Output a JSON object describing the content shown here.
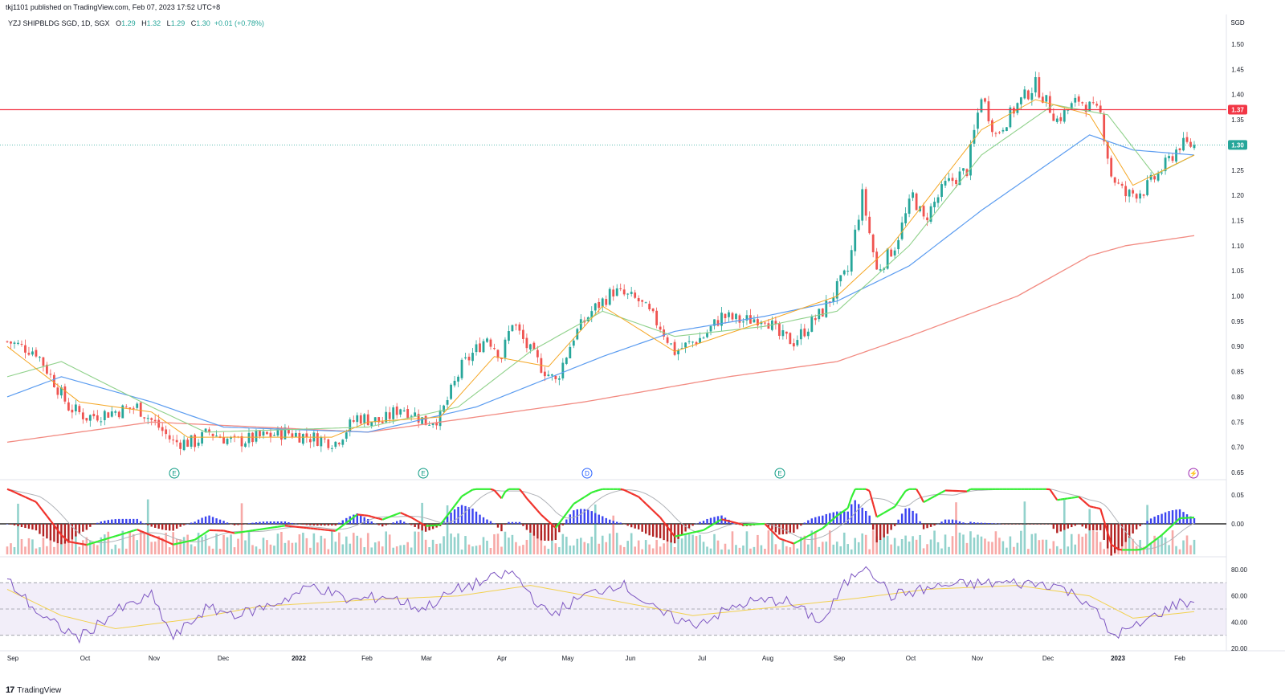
{
  "header": {
    "published": "tkj1101 published on TradingView.com, Feb 07, 2023 17:52 UTC+8"
  },
  "symbol": {
    "name": "YZJ SHIPBLDG SGD, 1D, SGX",
    "open_label": "O",
    "open": "1.29",
    "high_label": "H",
    "high": "1.32",
    "low_label": "L",
    "low": "1.29",
    "close_label": "C",
    "close": "1.30",
    "change": "+0.01 (+0.78%)"
  },
  "footer": {
    "brand": "TradingView",
    "logo": "17"
  },
  "colors": {
    "up": "#26a69a",
    "down": "#ef5350",
    "resistance": "#f23645",
    "ema_fast": "#f5a623",
    "ema_mid": "#8fd18a",
    "ema_slow": "#5b9cf0",
    "ema_long": "#f28b82",
    "rsi": "#7e57c2",
    "rsi_ma": "#f2d14f",
    "macd_up": "#33ee33",
    "macd_down": "#f0322b"
  },
  "chart_data": [
    {
      "type": "candlestick",
      "currency": "SGD",
      "x_labels": [
        "Sep",
        "Oct",
        "Nov",
        "Dec",
        "2022",
        "Feb",
        "Mar",
        "Apr",
        "May",
        "Jun",
        "Jul",
        "Aug",
        "Sep",
        "Oct",
        "Nov",
        "Dec",
        "2023",
        "Feb"
      ],
      "y_ticks": [
        "1.50",
        "1.45",
        "1.40",
        "1.35",
        "1.30",
        "1.25",
        "1.20",
        "1.15",
        "1.10",
        "1.05",
        "1.00",
        "0.95",
        "0.90",
        "0.85",
        "0.80",
        "0.75",
        "0.70",
        "0.65"
      ],
      "ylim": [
        0.625,
        1.525
      ],
      "resistance_level": 1.37,
      "resistance_label": "1.37",
      "last_price": 1.3,
      "last_price_label": "1.30",
      "close_path": [
        [
          0,
          0.91
        ],
        [
          8,
          0.89
        ],
        [
          13,
          0.83
        ],
        [
          17,
          0.78
        ],
        [
          22,
          0.76
        ],
        [
          29,
          0.77
        ],
        [
          36,
          0.78
        ],
        [
          42,
          0.74
        ],
        [
          46,
          0.71
        ],
        [
          52,
          0.71
        ],
        [
          56,
          0.73
        ],
        [
          63,
          0.71
        ],
        [
          70,
          0.72
        ],
        [
          77,
          0.73
        ],
        [
          84,
          0.72
        ],
        [
          91,
          0.71
        ],
        [
          97,
          0.76
        ],
        [
          104,
          0.75
        ],
        [
          109,
          0.78
        ],
        [
          112,
          0.77
        ],
        [
          116,
          0.75
        ],
        [
          120,
          0.76
        ],
        [
          126,
          0.86
        ],
        [
          133,
          0.92
        ],
        [
          137,
          0.88
        ],
        [
          140,
          0.95
        ],
        [
          144,
          0.9
        ],
        [
          148,
          0.86
        ],
        [
          152,
          0.83
        ],
        [
          157,
          0.92
        ],
        [
          162,
          0.97
        ],
        [
          168,
          1.01
        ],
        [
          175,
          0.99
        ],
        [
          181,
          0.94
        ],
        [
          185,
          0.89
        ],
        [
          193,
          0.92
        ],
        [
          198,
          0.96
        ],
        [
          204,
          0.95
        ],
        [
          210,
          0.96
        ],
        [
          214,
          0.92
        ],
        [
          218,
          0.91
        ],
        [
          226,
          0.97
        ],
        [
          233,
          1.05
        ],
        [
          237,
          1.2
        ],
        [
          241,
          1.05
        ],
        [
          246,
          1.1
        ],
        [
          251,
          1.2
        ],
        [
          254,
          1.15
        ],
        [
          260,
          1.22
        ],
        [
          266,
          1.25
        ],
        [
          270,
          1.4
        ],
        [
          274,
          1.32
        ],
        [
          280,
          1.38
        ],
        [
          285,
          1.42
        ],
        [
          291,
          1.35
        ],
        [
          297,
          1.39
        ],
        [
          303,
          1.36
        ],
        [
          306,
          1.24
        ],
        [
          310,
          1.2
        ],
        [
          315,
          1.21
        ],
        [
          320,
          1.25
        ],
        [
          325,
          1.3
        ],
        [
          329,
          1.3
        ]
      ],
      "ema_fast_path": [
        [
          0,
          0.9
        ],
        [
          20,
          0.79
        ],
        [
          40,
          0.77
        ],
        [
          50,
          0.72
        ],
        [
          90,
          0.72
        ],
        [
          100,
          0.75
        ],
        [
          120,
          0.76
        ],
        [
          135,
          0.88
        ],
        [
          150,
          0.86
        ],
        [
          165,
          0.98
        ],
        [
          185,
          0.89
        ],
        [
          210,
          0.95
        ],
        [
          230,
          1.0
        ],
        [
          245,
          1.1
        ],
        [
          270,
          1.33
        ],
        [
          285,
          1.39
        ],
        [
          300,
          1.36
        ],
        [
          312,
          1.22
        ],
        [
          329,
          1.28
        ]
      ],
      "ema_mid_path": [
        [
          0,
          0.84
        ],
        [
          15,
          0.87
        ],
        [
          40,
          0.78
        ],
        [
          55,
          0.73
        ],
        [
          100,
          0.74
        ],
        [
          125,
          0.78
        ],
        [
          145,
          0.89
        ],
        [
          165,
          0.97
        ],
        [
          185,
          0.92
        ],
        [
          210,
          0.94
        ],
        [
          230,
          0.97
        ],
        [
          250,
          1.1
        ],
        [
          270,
          1.28
        ],
        [
          290,
          1.38
        ],
        [
          305,
          1.36
        ],
        [
          318,
          1.24
        ],
        [
          329,
          1.28
        ]
      ],
      "ema_slow_path": [
        [
          0,
          0.8
        ],
        [
          15,
          0.84
        ],
        [
          40,
          0.79
        ],
        [
          60,
          0.74
        ],
        [
          100,
          0.73
        ],
        [
          130,
          0.78
        ],
        [
          165,
          0.88
        ],
        [
          185,
          0.93
        ],
        [
          210,
          0.96
        ],
        [
          230,
          0.99
        ],
        [
          250,
          1.06
        ],
        [
          270,
          1.17
        ],
        [
          290,
          1.27
        ],
        [
          300,
          1.32
        ],
        [
          312,
          1.29
        ],
        [
          329,
          1.28
        ]
      ],
      "ema_long_path": [
        [
          0,
          0.71
        ],
        [
          40,
          0.75
        ],
        [
          100,
          0.73
        ],
        [
          160,
          0.79
        ],
        [
          200,
          0.84
        ],
        [
          230,
          0.87
        ],
        [
          250,
          0.92
        ],
        [
          280,
          1.0
        ],
        [
          300,
          1.08
        ],
        [
          310,
          1.1
        ],
        [
          329,
          1.12
        ]
      ],
      "event_markers": [
        "E",
        "E",
        "D",
        "E",
        "⚡"
      ]
    },
    {
      "type": "histogram-line",
      "name": "MACD",
      "y_ticks": [
        "0.05",
        "0.00"
      ],
      "ylim": [
        -0.055,
        0.065
      ]
    },
    {
      "type": "line",
      "name": "RSI",
      "y_ticks": [
        "80.00",
        "60.00",
        "40.00",
        "20.00"
      ],
      "ylim": [
        20,
        85
      ],
      "band": [
        30,
        70
      ],
      "midline": 50,
      "rsi_path": [
        [
          0,
          72
        ],
        [
          10,
          43
        ],
        [
          20,
          28
        ],
        [
          30,
          48
        ],
        [
          40,
          60
        ],
        [
          46,
          28
        ],
        [
          55,
          50
        ],
        [
          65,
          46
        ],
        [
          75,
          55
        ],
        [
          85,
          68
        ],
        [
          95,
          56
        ],
        [
          105,
          60
        ],
        [
          115,
          50
        ],
        [
          125,
          65
        ],
        [
          140,
          78
        ],
        [
          150,
          45
        ],
        [
          160,
          60
        ],
        [
          170,
          70
        ],
        [
          180,
          48
        ],
        [
          190,
          38
        ],
        [
          205,
          55
        ],
        [
          215,
          57
        ],
        [
          226,
          40
        ],
        [
          232,
          68
        ],
        [
          238,
          85
        ],
        [
          245,
          60
        ],
        [
          260,
          68
        ],
        [
          275,
          70
        ],
        [
          290,
          69
        ],
        [
          300,
          55
        ],
        [
          306,
          30
        ],
        [
          312,
          35
        ],
        [
          320,
          48
        ],
        [
          325,
          55
        ],
        [
          329,
          55
        ]
      ],
      "rsi_ma_path": [
        [
          0,
          65
        ],
        [
          15,
          45
        ],
        [
          30,
          35
        ],
        [
          50,
          42
        ],
        [
          70,
          52
        ],
        [
          100,
          57
        ],
        [
          125,
          60
        ],
        [
          145,
          68
        ],
        [
          165,
          58
        ],
        [
          190,
          45
        ],
        [
          215,
          52
        ],
        [
          235,
          58
        ],
        [
          255,
          65
        ],
        [
          280,
          68
        ],
        [
          300,
          60
        ],
        [
          312,
          43
        ],
        [
          329,
          48
        ]
      ]
    }
  ]
}
